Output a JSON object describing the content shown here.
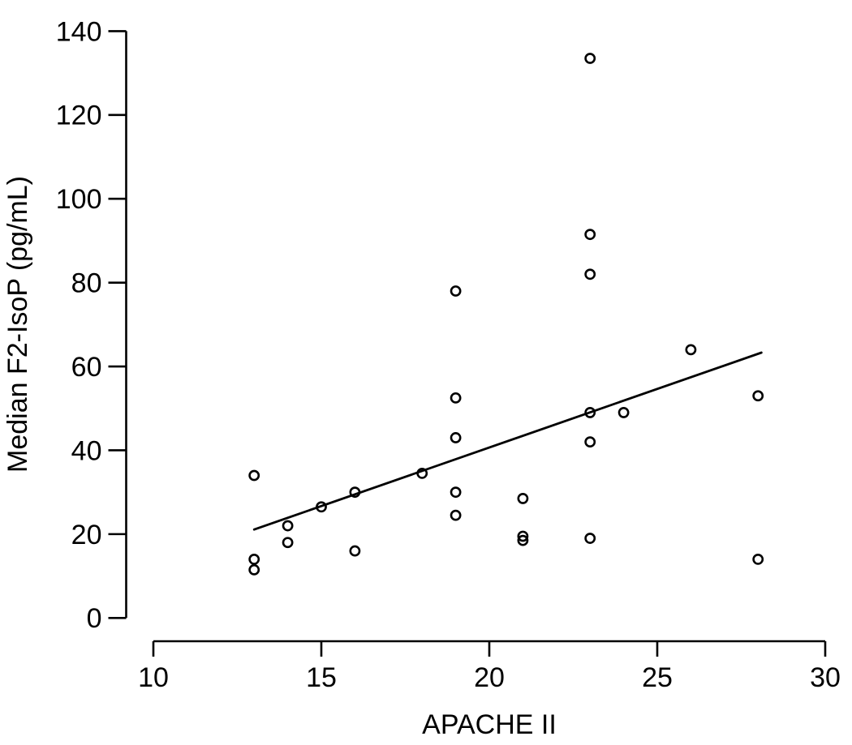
{
  "figure": {
    "background": "#ffffff",
    "stroke_color": "#000000",
    "marker_style": "open-circle"
  },
  "chart_data": {
    "type": "scatter",
    "title": "",
    "xlabel": "APACHE II",
    "ylabel": "Median F2-IsoP (pg/mL)",
    "xlim": [
      10,
      30
    ],
    "ylim": [
      0,
      140
    ],
    "x_ticks": [
      10,
      15,
      20,
      25,
      30
    ],
    "y_ticks": [
      0,
      20,
      40,
      60,
      80,
      100,
      120,
      140
    ],
    "grid": false,
    "legend": "none",
    "points": [
      [
        13,
        34
      ],
      [
        13,
        14
      ],
      [
        13,
        11.5
      ],
      [
        14,
        22
      ],
      [
        14,
        18
      ],
      [
        15,
        26.5
      ],
      [
        16,
        30
      ],
      [
        16,
        16
      ],
      [
        18,
        34.5
      ],
      [
        19,
        78
      ],
      [
        19,
        52.5
      ],
      [
        19,
        43
      ],
      [
        19,
        30
      ],
      [
        19,
        24.5
      ],
      [
        21,
        28.5
      ],
      [
        21,
        19.5
      ],
      [
        21,
        18.5
      ],
      [
        23,
        133.5
      ],
      [
        23,
        91.5
      ],
      [
        23,
        82
      ],
      [
        23,
        49
      ],
      [
        23,
        42
      ],
      [
        23,
        19
      ],
      [
        24,
        49
      ],
      [
        26,
        64
      ],
      [
        28,
        53
      ],
      [
        28,
        14
      ]
    ],
    "regression_line": {
      "x1": 13,
      "y1": 21.1,
      "x2": 28.1,
      "y2": 63.3
    }
  }
}
